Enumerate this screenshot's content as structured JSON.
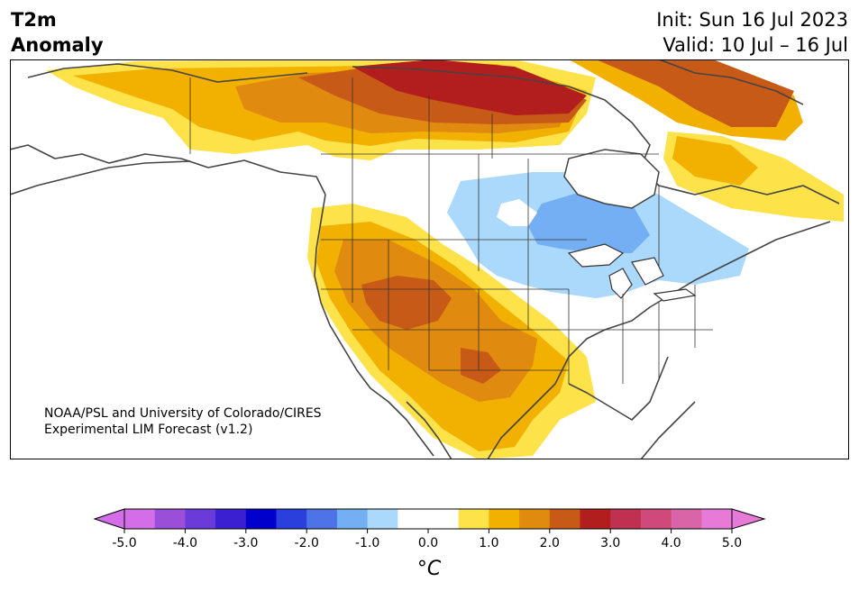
{
  "header": {
    "title_line1": "T2m",
    "title_line2": "Anomaly",
    "init": "Init: Sun 16 Jul 2023",
    "valid": "Valid: 10 Jul – 16 Jul"
  },
  "map": {
    "credit_line1": "NOAA/PSL and University of Colorado/CIRES",
    "credit_line2": "Experimental LIM Forecast (v1.2)"
  },
  "colorbar": {
    "unit_label": "°C",
    "ticks": [
      "-5.0",
      "-4.0",
      "-3.0",
      "-2.0",
      "-1.0",
      "0.0",
      "1.0",
      "2.0",
      "3.0",
      "4.0",
      "5.0"
    ],
    "colors": [
      "#d36ee8",
      "#9b4fd8",
      "#6a3bd8",
      "#3a20d0",
      "#0000cc",
      "#2a40dc",
      "#4d73e6",
      "#74aff4",
      "#abd9fb",
      "#ffffff",
      "#ffffff",
      "#fde24a",
      "#f2b100",
      "#e08a10",
      "#c75a16",
      "#b21e1e",
      "#c03050",
      "#cf4a7a",
      "#d965a8",
      "#e77ad6"
    ]
  }
}
